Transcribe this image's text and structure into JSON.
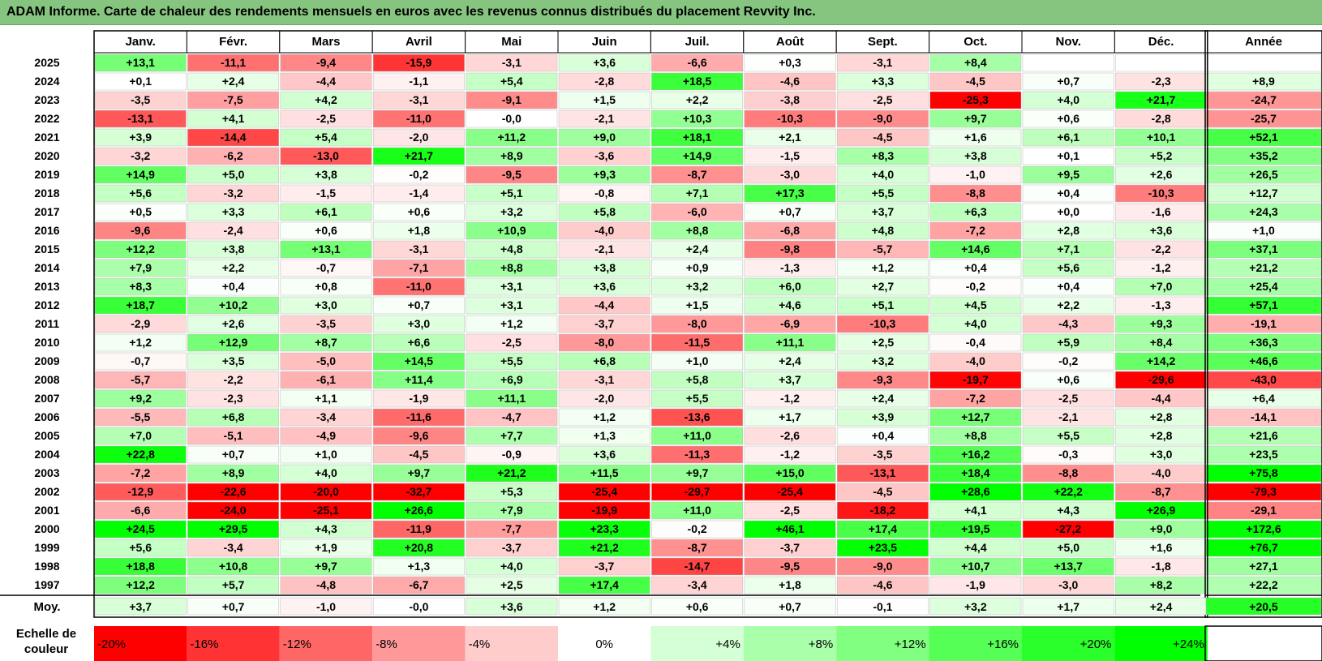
{
  "title": "ADAM Informe. Carte de chaleur des rendements mensuels en euros avec les revenus connus distribués du placement Revvity Inc.",
  "chart_data": {
    "type": "heatmap",
    "columns": [
      "Janv.",
      "Févr.",
      "Mars",
      "Avril",
      "Mai",
      "Juin",
      "Juil.",
      "Août",
      "Sept.",
      "Oct.",
      "Nov.",
      "Déc."
    ],
    "year_header": "Année",
    "rows": [
      {
        "year": "2025",
        "values": [
          "+13,1",
          "-11,1",
          "-9,4",
          "-15,9",
          "-3,1",
          "+3,6",
          "-6,6",
          "+0,3",
          "-3,1",
          "+8,4",
          "",
          ""
        ],
        "total": ""
      },
      {
        "year": "2024",
        "values": [
          "+0,1",
          "+2,4",
          "-4,4",
          "-1,1",
          "+5,4",
          "-2,8",
          "+18,5",
          "-4,6",
          "+3,3",
          "-4,5",
          "+0,7",
          "-2,3"
        ],
        "total": "+8,9"
      },
      {
        "year": "2023",
        "values": [
          "-3,5",
          "-7,5",
          "+4,2",
          "-3,1",
          "-9,1",
          "+1,5",
          "+2,2",
          "-3,8",
          "-2,5",
          "-25,3",
          "+4,0",
          "+21,7"
        ],
        "total": "-24,7"
      },
      {
        "year": "2022",
        "values": [
          "-13,1",
          "+4,1",
          "-2,5",
          "-11,0",
          "-0,0",
          "-2,1",
          "+10,3",
          "-10,3",
          "-9,0",
          "+9,7",
          "+0,6",
          "-2,8"
        ],
        "total": "-25,7"
      },
      {
        "year": "2021",
        "values": [
          "+3,9",
          "-14,4",
          "+5,4",
          "-2,0",
          "+11,2",
          "+9,0",
          "+18,1",
          "+2,1",
          "-4,5",
          "+1,6",
          "+6,1",
          "+10,1"
        ],
        "total": "+52,1"
      },
      {
        "year": "2020",
        "values": [
          "-3,2",
          "-6,2",
          "-13,0",
          "+21,7",
          "+8,9",
          "-3,6",
          "+14,9",
          "-1,5",
          "+8,3",
          "+3,8",
          "+0,1",
          "+5,2"
        ],
        "total": "+35,2"
      },
      {
        "year": "2019",
        "values": [
          "+14,9",
          "+5,0",
          "+3,8",
          "-0,2",
          "-9,5",
          "+9,3",
          "-8,7",
          "-3,0",
          "+4,0",
          "-1,0",
          "+9,5",
          "+2,6"
        ],
        "total": "+26,5"
      },
      {
        "year": "2018",
        "values": [
          "+5,6",
          "-3,2",
          "-1,5",
          "-1,4",
          "+5,1",
          "-0,8",
          "+7,1",
          "+17,3",
          "+5,5",
          "-8,8",
          "+0,4",
          "-10,3"
        ],
        "total": "+12,7"
      },
      {
        "year": "2017",
        "values": [
          "+0,5",
          "+3,3",
          "+6,1",
          "+0,6",
          "+3,2",
          "+5,8",
          "-6,0",
          "+0,7",
          "+3,7",
          "+6,3",
          "+0,0",
          "-1,6"
        ],
        "total": "+24,3"
      },
      {
        "year": "2016",
        "values": [
          "-9,6",
          "-2,4",
          "+0,6",
          "+1,8",
          "+10,9",
          "-4,0",
          "+8,8",
          "-6,8",
          "+4,8",
          "-7,2",
          "+2,8",
          "+3,6"
        ],
        "total": "+1,0"
      },
      {
        "year": "2015",
        "values": [
          "+12,2",
          "+3,8",
          "+13,1",
          "-3,1",
          "+4,8",
          "-2,1",
          "+2,4",
          "-9,8",
          "-5,7",
          "+14,6",
          "+7,1",
          "-2,2"
        ],
        "total": "+37,1"
      },
      {
        "year": "2014",
        "values": [
          "+7,9",
          "+2,2",
          "-0,7",
          "-7,1",
          "+8,8",
          "+3,8",
          "+0,9",
          "-1,3",
          "+1,2",
          "+0,4",
          "+5,6",
          "-1,2"
        ],
        "total": "+21,2"
      },
      {
        "year": "2013",
        "values": [
          "+8,3",
          "+0,4",
          "+0,8",
          "-11,0",
          "+3,1",
          "+3,6",
          "+3,2",
          "+6,0",
          "+2,7",
          "-0,2",
          "+0,4",
          "+7,0"
        ],
        "total": "+25,4"
      },
      {
        "year": "2012",
        "values": [
          "+18,7",
          "+10,2",
          "+3,0",
          "+0,7",
          "+3,1",
          "-4,4",
          "+1,5",
          "+4,6",
          "+5,1",
          "+4,5",
          "+2,2",
          "-1,3"
        ],
        "total": "+57,1"
      },
      {
        "year": "2011",
        "values": [
          "-2,9",
          "+2,6",
          "-3,5",
          "+3,0",
          "+1,2",
          "-3,7",
          "-8,0",
          "-6,9",
          "-10,3",
          "+4,0",
          "-4,3",
          "+9,3"
        ],
        "total": "-19,1"
      },
      {
        "year": "2010",
        "values": [
          "+1,2",
          "+12,9",
          "+8,7",
          "+6,6",
          "-2,5",
          "-8,0",
          "-11,5",
          "+11,1",
          "+2,5",
          "-0,4",
          "+5,9",
          "+8,4"
        ],
        "total": "+36,3"
      },
      {
        "year": "2009",
        "values": [
          "-0,7",
          "+3,5",
          "-5,0",
          "+14,5",
          "+5,5",
          "+6,8",
          "+1,0",
          "+2,4",
          "+3,2",
          "-4,0",
          "-0,2",
          "+14,2"
        ],
        "total": "+46,6"
      },
      {
        "year": "2008",
        "values": [
          "-5,7",
          "-2,2",
          "-6,1",
          "+11,4",
          "+6,9",
          "-3,1",
          "+5,8",
          "+3,7",
          "-9,3",
          "-19,7",
          "+0,6",
          "-29,6"
        ],
        "total": "-43,0"
      },
      {
        "year": "2007",
        "values": [
          "+9,2",
          "-2,3",
          "+1,1",
          "-1,9",
          "+11,1",
          "-2,0",
          "+5,5",
          "-1,2",
          "+2,4",
          "-7,2",
          "-2,5",
          "-4,4"
        ],
        "total": "+6,4"
      },
      {
        "year": "2006",
        "values": [
          "-5,5",
          "+6,8",
          "-3,4",
          "-11,6",
          "-4,7",
          "+1,2",
          "-13,6",
          "+1,7",
          "+3,9",
          "+12,7",
          "-2,1",
          "+2,8"
        ],
        "total": "-14,1"
      },
      {
        "year": "2005",
        "values": [
          "+7,0",
          "-5,1",
          "-4,9",
          "-9,6",
          "+7,7",
          "+1,3",
          "+11,0",
          "-2,6",
          "+0,4",
          "+8,8",
          "+5,5",
          "+2,8"
        ],
        "total": "+21,6"
      },
      {
        "year": "2004",
        "values": [
          "+22,8",
          "+0,7",
          "+1,0",
          "-4,5",
          "-0,9",
          "+3,6",
          "-11,3",
          "-1,2",
          "-3,5",
          "+16,2",
          "-0,3",
          "+3,0"
        ],
        "total": "+23,5"
      },
      {
        "year": "2003",
        "values": [
          "-7,2",
          "+8,9",
          "+4,0",
          "+9,7",
          "+21,2",
          "+11,5",
          "+9,7",
          "+15,0",
          "-13,1",
          "+18,4",
          "-8,8",
          "-4,0"
        ],
        "total": "+75,8"
      },
      {
        "year": "2002",
        "values": [
          "-12,9",
          "-22,6",
          "-20,0",
          "-32,7",
          "+5,3",
          "-25,4",
          "-29,7",
          "-25,4",
          "-4,5",
          "+28,6",
          "+22,2",
          "-8,7"
        ],
        "total": "-79,3"
      },
      {
        "year": "2001",
        "values": [
          "-6,6",
          "-24,0",
          "-25,1",
          "+26,6",
          "+7,9",
          "-19,9",
          "+11,0",
          "-2,5",
          "-18,2",
          "+4,1",
          "+4,3",
          "+26,9"
        ],
        "total": "-29,1"
      },
      {
        "year": "2000",
        "values": [
          "+24,5",
          "+29,5",
          "+4,3",
          "-11,9",
          "-7,7",
          "+23,3",
          "-0,2",
          "+46,1",
          "+17,4",
          "+19,5",
          "-27,2",
          "+9,0"
        ],
        "total": "+172,6"
      },
      {
        "year": "1999",
        "values": [
          "+5,6",
          "-3,4",
          "+1,9",
          "+20,8",
          "-3,7",
          "+21,2",
          "-8,7",
          "-3,7",
          "+23,5",
          "+4,4",
          "+5,0",
          "+1,6"
        ],
        "total": "+76,7"
      },
      {
        "year": "1998",
        "values": [
          "+18,8",
          "+10,8",
          "+9,7",
          "+1,3",
          "+4,0",
          "-3,7",
          "-14,7",
          "-9,5",
          "-9,0",
          "+10,7",
          "+13,7",
          "-1,8"
        ],
        "total": "+27,1"
      },
      {
        "year": "1997",
        "values": [
          "+12,2",
          "+5,7",
          "-4,8",
          "-6,7",
          "+2,5",
          "+17,4",
          "-3,4",
          "+1,8",
          "-4,6",
          "-1,9",
          "-3,0",
          "+8,2"
        ],
        "total": "+22,2"
      }
    ],
    "average": {
      "label": "Moy.",
      "values": [
        "+3,7",
        "+0,7",
        "-1,0",
        "-0,0",
        "+3,6",
        "+1,2",
        "+0,6",
        "+0,7",
        "-0,1",
        "+3,2",
        "+1,7",
        "+2,4"
      ],
      "total": "+20,5"
    },
    "scale": {
      "label_line1": "Echelle de",
      "label_line2": "couleur",
      "steps": [
        {
          "label": "-20%",
          "value": -20
        },
        {
          "label": "-16%",
          "value": -16
        },
        {
          "label": "-12%",
          "value": -12
        },
        {
          "label": "-8%",
          "value": -8
        },
        {
          "label": "-4%",
          "value": -4
        },
        {
          "label": "0%",
          "value": 0
        },
        {
          "label": "+4%",
          "value": 4
        },
        {
          "label": "+8%",
          "value": 8
        },
        {
          "label": "+12%",
          "value": 12
        },
        {
          "label": "+16%",
          "value": 16
        },
        {
          "label": "+20%",
          "value": 20
        },
        {
          "label": "+24%",
          "value": 24
        }
      ]
    },
    "colors": {
      "negative_max": "#ff0000",
      "neutral": "#ffffff",
      "positive_max": "#00ff00",
      "title_bar": "#86c57f"
    }
  }
}
